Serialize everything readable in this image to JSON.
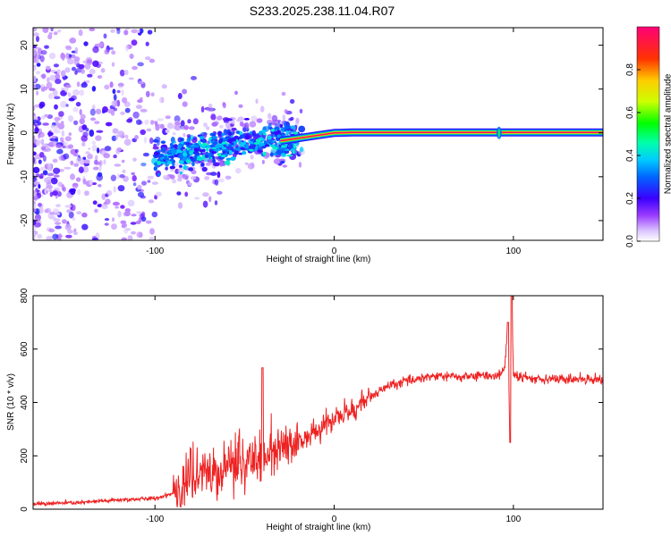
{
  "title": "S233.2025.238.11.04.R07",
  "chart_data": [
    {
      "type": "heatmap",
      "name": "spectrogram",
      "xlabel": "Height of straight line (km)",
      "ylabel": "Frequency (Hz)",
      "xlim": [
        -168,
        150
      ],
      "ylim": [
        -24.5,
        24
      ],
      "xticks": [
        -100,
        0,
        100
      ],
      "yticks": [
        -20,
        -10,
        0,
        10,
        20
      ],
      "colorbar": {
        "label": "Normalized spectral amplitude",
        "range": [
          0,
          1
        ],
        "ticks": [
          0.0,
          0.2,
          0.4,
          0.6,
          0.8
        ],
        "tick_labels": [
          "0.0",
          "0.2",
          "0.4",
          "0.6",
          "0.8"
        ]
      },
      "ridge": {
        "description": "dominant frequency line",
        "x": [
          -30,
          -20,
          -10,
          0,
          10,
          150
        ],
        "y": [
          -1.8,
          -1.2,
          -0.6,
          0.0,
          0.1,
          0.1
        ],
        "peak_amplitude": 0.98,
        "disturbance_x": 92
      }
    },
    {
      "type": "line",
      "name": "snr",
      "xlabel": "Height of straight line (km)",
      "ylabel": "SNR (10 * v/v)",
      "xlim": [
        -168,
        150
      ],
      "ylim": [
        0,
        800
      ],
      "xticks": [
        -100,
        0,
        100
      ],
      "yticks": [
        0,
        200,
        400,
        600,
        800
      ],
      "series": [
        {
          "name": "SNR",
          "color": "#ee2222",
          "x": [
            -168,
            -140,
            -120,
            -100,
            -90,
            -80,
            -70,
            -60,
            -50,
            -40,
            -30,
            -20,
            -10,
            0,
            10,
            20,
            30,
            40,
            50,
            60,
            70,
            80,
            90,
            95,
            97,
            98,
            99,
            100,
            110,
            120,
            130,
            140,
            150
          ],
          "y": [
            20,
            25,
            35,
            40,
            60,
            110,
            120,
            140,
            160,
            190,
            220,
            250,
            290,
            340,
            370,
            420,
            460,
            480,
            495,
            500,
            495,
            500,
            500,
            520,
            700,
            250,
            790,
            500,
            490,
            490,
            485,
            490,
            485
          ]
        }
      ],
      "annotations": [
        {
          "x": -40,
          "y": 530,
          "text": ""
        },
        {
          "x": 99,
          "y": 800,
          "text": ""
        }
      ]
    }
  ]
}
